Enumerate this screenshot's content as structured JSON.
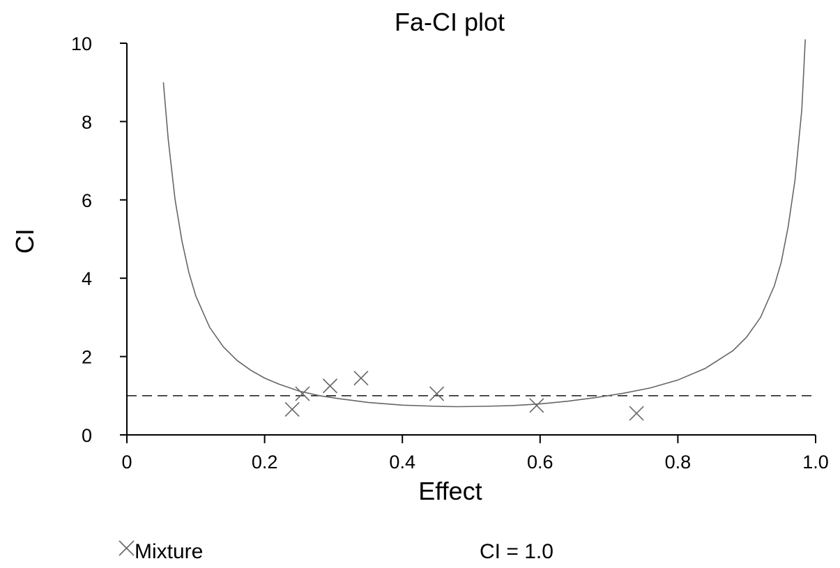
{
  "chart_data": {
    "type": "scatter",
    "title": "Fa-CI plot",
    "xlabel": "Effect",
    "ylabel": "CI",
    "xlim": [
      0,
      1.0
    ],
    "ylim": [
      0,
      10
    ],
    "x_ticks": [
      "0",
      "0.2",
      "0.4",
      "0.6",
      "0.8",
      "1.0"
    ],
    "y_ticks": [
      "0",
      "2",
      "4",
      "6",
      "8",
      "10"
    ],
    "grid": false,
    "series": [
      {
        "name": "Mixture",
        "marker": "x",
        "points": [
          {
            "x": 0.24,
            "y": 0.65
          },
          {
            "x": 0.255,
            "y": 1.05
          },
          {
            "x": 0.295,
            "y": 1.25
          },
          {
            "x": 0.34,
            "y": 1.45
          },
          {
            "x": 0.45,
            "y": 1.05
          },
          {
            "x": 0.595,
            "y": 0.75
          },
          {
            "x": 0.74,
            "y": 0.55
          }
        ]
      }
    ],
    "fitted_curve": {
      "points": [
        {
          "x": 0.053,
          "y": 9.0
        },
        {
          "x": 0.06,
          "y": 7.55
        },
        {
          "x": 0.07,
          "y": 6.0
        },
        {
          "x": 0.08,
          "y": 4.95
        },
        {
          "x": 0.09,
          "y": 4.15
        },
        {
          "x": 0.1,
          "y": 3.55
        },
        {
          "x": 0.12,
          "y": 2.75
        },
        {
          "x": 0.14,
          "y": 2.25
        },
        {
          "x": 0.16,
          "y": 1.9
        },
        {
          "x": 0.18,
          "y": 1.65
        },
        {
          "x": 0.2,
          "y": 1.45
        },
        {
          "x": 0.22,
          "y": 1.3
        },
        {
          "x": 0.25,
          "y": 1.12
        },
        {
          "x": 0.28,
          "y": 1.0
        },
        {
          "x": 0.31,
          "y": 0.92
        },
        {
          "x": 0.35,
          "y": 0.83
        },
        {
          "x": 0.4,
          "y": 0.76
        },
        {
          "x": 0.45,
          "y": 0.73
        },
        {
          "x": 0.48,
          "y": 0.72
        },
        {
          "x": 0.52,
          "y": 0.73
        },
        {
          "x": 0.56,
          "y": 0.75
        },
        {
          "x": 0.6,
          "y": 0.79
        },
        {
          "x": 0.64,
          "y": 0.86
        },
        {
          "x": 0.68,
          "y": 0.95
        },
        {
          "x": 0.72,
          "y": 1.06
        },
        {
          "x": 0.76,
          "y": 1.2
        },
        {
          "x": 0.8,
          "y": 1.4
        },
        {
          "x": 0.84,
          "y": 1.7
        },
        {
          "x": 0.88,
          "y": 2.15
        },
        {
          "x": 0.9,
          "y": 2.5
        },
        {
          "x": 0.92,
          "y": 3.0
        },
        {
          "x": 0.94,
          "y": 3.8
        },
        {
          "x": 0.95,
          "y": 4.4
        },
        {
          "x": 0.96,
          "y": 5.3
        },
        {
          "x": 0.97,
          "y": 6.5
        },
        {
          "x": 0.98,
          "y": 8.3
        },
        {
          "x": 0.985,
          "y": 10.1
        }
      ]
    },
    "reference_line": {
      "y": 1.0,
      "style": "dashed",
      "label": "CI = 1.0"
    },
    "legend": {
      "placement": "bottom",
      "entries": [
        "Mixture",
        "CI = 1.0"
      ]
    },
    "colors": {
      "curve": "#666666",
      "markers": "#666666",
      "axes": "#000000",
      "reference": "#000000"
    }
  }
}
